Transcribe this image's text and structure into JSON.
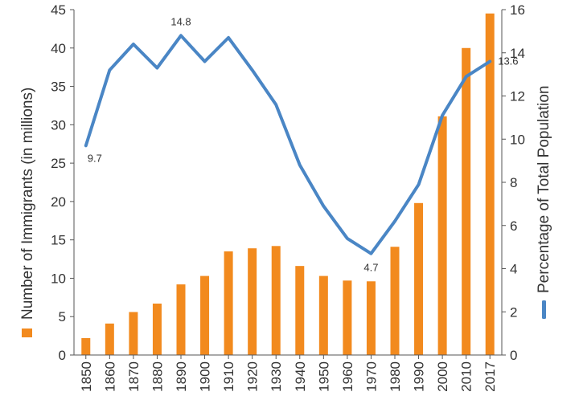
{
  "chart_data": {
    "type": "bar+line",
    "categories": [
      "1850",
      "1860",
      "1870",
      "1880",
      "1890",
      "1900",
      "1910",
      "1920",
      "1930",
      "1940",
      "1950",
      "1960",
      "1970",
      "1980",
      "1990",
      "2000",
      "2010",
      "2017"
    ],
    "bar_series": {
      "name": "Number of Immigrants (in millions)",
      "axis": "left",
      "color": "#f28a1e",
      "values": [
        2.2,
        4.1,
        5.6,
        6.7,
        9.2,
        10.3,
        13.5,
        13.9,
        14.2,
        11.6,
        10.3,
        9.7,
        9.6,
        14.1,
        19.8,
        31.1,
        40.0,
        44.5
      ]
    },
    "line_series": {
      "name": "Percentage of Total Population",
      "axis": "right",
      "color": "#4a86c5",
      "values": [
        9.7,
        13.2,
        14.4,
        13.3,
        14.8,
        13.6,
        14.7,
        13.2,
        11.6,
        8.8,
        6.9,
        5.4,
        4.7,
        6.2,
        7.9,
        11.1,
        12.9,
        13.6
      ]
    },
    "annotations": [
      {
        "index": 0,
        "text": "9.7"
      },
      {
        "index": 4,
        "text": "14.8"
      },
      {
        "index": 12,
        "text": "4.7"
      },
      {
        "index": 17,
        "text": "13.6"
      }
    ],
    "ylim_left": [
      0,
      45
    ],
    "yticks_left": [
      "0",
      "5",
      "10",
      "15",
      "20",
      "25",
      "30",
      "35",
      "40",
      "45"
    ],
    "ylim_right": [
      0,
      16
    ],
    "yticks_right": [
      "0",
      "2",
      "4",
      "6",
      "8",
      "10",
      "12",
      "14",
      "16"
    ],
    "ylabel_left": "Number of Immigrants (in millions)",
    "ylabel_right": "Percentage of Total Population",
    "grid": false,
    "legend": "axis-label markers"
  }
}
